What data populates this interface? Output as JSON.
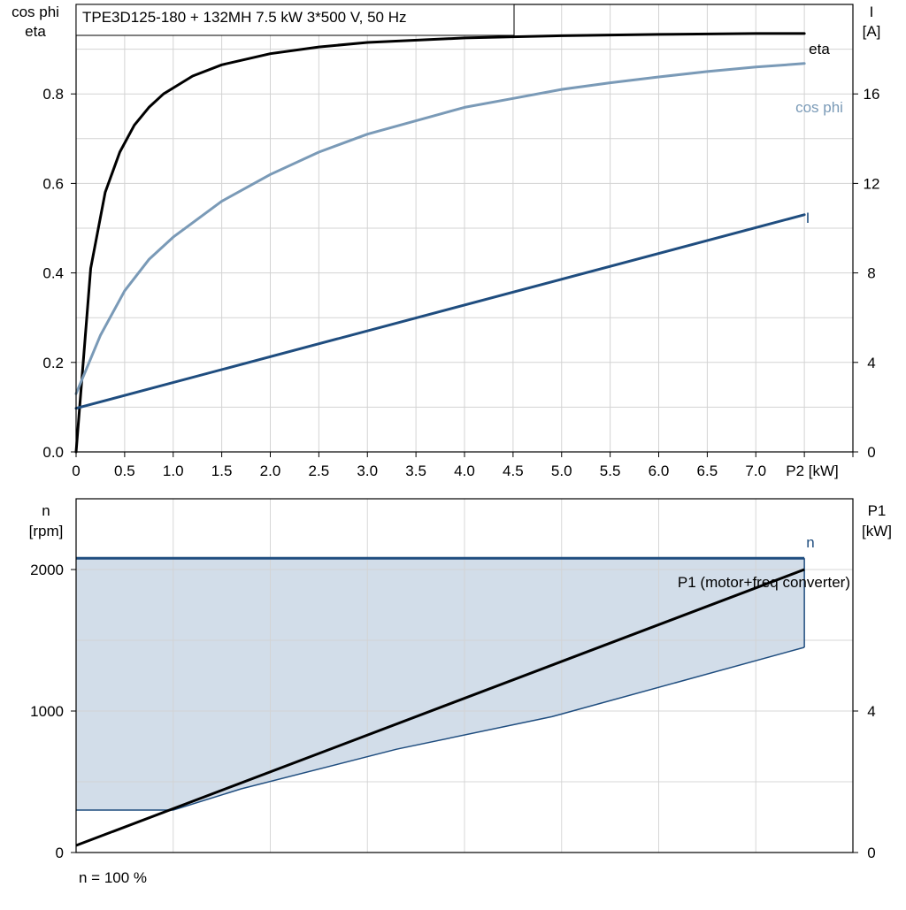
{
  "title_box": "TPE3D125-180 + 132MH   7.5 kW   3*500 V, 50 Hz",
  "footer_note": "n = 100 %",
  "colors": {
    "eta": "#000000",
    "cos_phi": "#7a9ab7",
    "current": "#1f4d7f",
    "speed": "#1f4d7f",
    "speed_fill": "#d2dde9",
    "p1": "#000000",
    "grid": "#d3d3d3",
    "axis": "#000000"
  },
  "chart_data": [
    {
      "type": "line",
      "x_axis": {
        "label": "P2 [kW]",
        "ticks": [
          "0",
          "0.5",
          "1.0",
          "1.5",
          "2.0",
          "2.5",
          "3.0",
          "3.5",
          "4.0",
          "4.5",
          "5.0",
          "5.5",
          "6.0",
          "6.5",
          "7.0"
        ],
        "range": [
          0,
          8
        ]
      },
      "y_left": {
        "label_lines": [
          "cos phi",
          "eta"
        ],
        "ticks": [
          "0.0",
          "0.2",
          "0.4",
          "0.6",
          "0.8"
        ],
        "range": [
          0,
          1.0
        ]
      },
      "y_right": {
        "label_lines": [
          "I",
          "[A]"
        ],
        "ticks": [
          "0",
          "4",
          "8",
          "12",
          "16"
        ],
        "range": [
          0,
          20
        ]
      },
      "grid": true,
      "series": [
        {
          "name": "eta",
          "axis": "left",
          "x": [
            0,
            0.15,
            0.3,
            0.45,
            0.6,
            0.75,
            0.9,
            1.05,
            1.2,
            1.5,
            2.0,
            2.5,
            3.0,
            4.0,
            5.0,
            6.0,
            7.0,
            7.5
          ],
          "y": [
            0.0,
            0.41,
            0.58,
            0.67,
            0.73,
            0.77,
            0.8,
            0.82,
            0.84,
            0.865,
            0.89,
            0.905,
            0.915,
            0.925,
            0.93,
            0.933,
            0.935,
            0.935
          ]
        },
        {
          "name": "cos phi",
          "axis": "left",
          "x": [
            0,
            0.25,
            0.5,
            0.75,
            1.0,
            1.5,
            2.0,
            2.5,
            3.0,
            3.5,
            4.0,
            4.5,
            5.0,
            5.5,
            6.0,
            6.5,
            7.0,
            7.5
          ],
          "y": [
            0.13,
            0.26,
            0.36,
            0.43,
            0.48,
            0.56,
            0.62,
            0.67,
            0.71,
            0.74,
            0.77,
            0.79,
            0.81,
            0.825,
            0.838,
            0.85,
            0.86,
            0.868
          ]
        },
        {
          "name": "I",
          "axis": "right",
          "x": [
            0,
            7.5
          ],
          "y": [
            1.95,
            10.6
          ]
        }
      ]
    },
    {
      "type": "area",
      "x_range": [
        0,
        8
      ],
      "y_left": {
        "label_lines": [
          "n",
          "[rpm]"
        ],
        "ticks": [
          "0",
          "1000",
          "2000"
        ],
        "range": [
          0,
          2500
        ]
      },
      "y_right": {
        "label_lines": [
          "P1",
          "[kW]"
        ],
        "ticks": [
          "0",
          "4"
        ],
        "range": [
          0,
          10
        ]
      },
      "grid": true,
      "series": [
        {
          "name": "n",
          "axis": "left",
          "upper": {
            "x": [
              0,
              7.5
            ],
            "y": [
              2080,
              2080
            ]
          },
          "lower": {
            "x": [
              0,
              1.0,
              1.7,
              3.3,
              4.9,
              7.5
            ],
            "y": [
              300,
              300,
              450,
              730,
              960,
              1450
            ]
          }
        },
        {
          "name": "P1 (motor+freq converter)",
          "axis": "right",
          "x": [
            0,
            7.5
          ],
          "y": [
            0.2,
            8.0
          ]
        }
      ]
    }
  ]
}
